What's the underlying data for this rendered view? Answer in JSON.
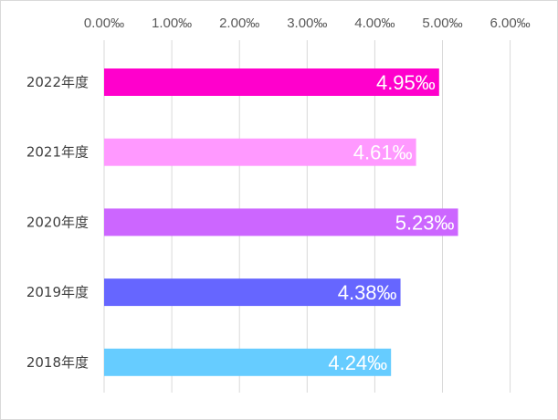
{
  "chart_data": {
    "type": "bar",
    "orientation": "horizontal",
    "title": "",
    "xlabel": "",
    "ylabel": "",
    "xlim": [
      0,
      6
    ],
    "x_ticks": [
      "0.00‰",
      "1.00‰",
      "2.00‰",
      "3.00‰",
      "4.00‰",
      "5.00‰",
      "6.00‰"
    ],
    "x_axis_position": "top",
    "grid": "vertical",
    "legend": "none",
    "categories": [
      "2022年度",
      "2021年度",
      "2020年度",
      "2019年度",
      "2018年度"
    ],
    "values": [
      4.95,
      4.61,
      5.23,
      4.38,
      4.24
    ],
    "data_labels": [
      "4.95‰",
      "4.61‰",
      "5.23‰",
      "4.38‰",
      "4.24‰"
    ],
    "colors": [
      "#ff00cc",
      "#ff99ff",
      "#cc66ff",
      "#6666ff",
      "#66ccff"
    ]
  }
}
